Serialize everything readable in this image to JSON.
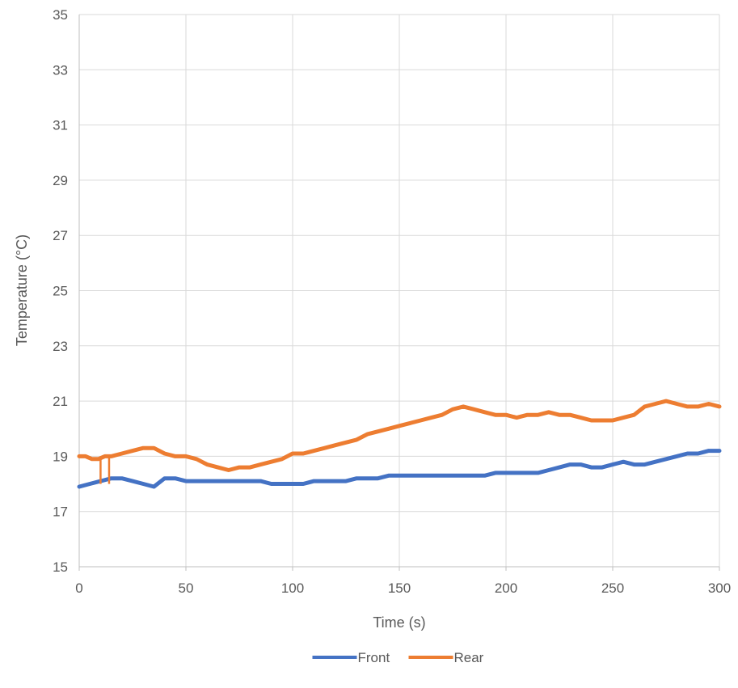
{
  "chart_data": {
    "type": "line",
    "title": "",
    "xlabel": "Time (s)",
    "ylabel": "Temperature (°C)",
    "xlim": [
      0,
      300
    ],
    "ylim": [
      15,
      35
    ],
    "xticks": [
      0,
      50,
      100,
      150,
      200,
      250,
      300
    ],
    "yticks": [
      15,
      17,
      19,
      21,
      23,
      25,
      27,
      29,
      31,
      33,
      35
    ],
    "grid": true,
    "legend_position": "bottom",
    "series": [
      {
        "name": "Front",
        "color": "#4472C4",
        "points": [
          [
            0,
            17.9
          ],
          [
            5,
            18.0
          ],
          [
            10,
            18.1
          ],
          [
            15,
            18.2
          ],
          [
            20,
            18.2
          ],
          [
            25,
            18.1
          ],
          [
            30,
            18.0
          ],
          [
            35,
            17.9
          ],
          [
            40,
            18.2
          ],
          [
            45,
            18.2
          ],
          [
            50,
            18.1
          ],
          [
            55,
            18.1
          ],
          [
            60,
            18.1
          ],
          [
            65,
            18.1
          ],
          [
            70,
            18.1
          ],
          [
            75,
            18.1
          ],
          [
            80,
            18.1
          ],
          [
            85,
            18.1
          ],
          [
            90,
            18.0
          ],
          [
            95,
            18.0
          ],
          [
            100,
            18.0
          ],
          [
            105,
            18.0
          ],
          [
            110,
            18.1
          ],
          [
            115,
            18.1
          ],
          [
            120,
            18.1
          ],
          [
            125,
            18.1
          ],
          [
            130,
            18.2
          ],
          [
            135,
            18.2
          ],
          [
            140,
            18.2
          ],
          [
            145,
            18.3
          ],
          [
            150,
            18.3
          ],
          [
            155,
            18.3
          ],
          [
            160,
            18.3
          ],
          [
            165,
            18.3
          ],
          [
            170,
            18.3
          ],
          [
            175,
            18.3
          ],
          [
            180,
            18.3
          ],
          [
            185,
            18.3
          ],
          [
            190,
            18.3
          ],
          [
            195,
            18.4
          ],
          [
            200,
            18.4
          ],
          [
            205,
            18.4
          ],
          [
            210,
            18.4
          ],
          [
            215,
            18.4
          ],
          [
            220,
            18.5
          ],
          [
            225,
            18.6
          ],
          [
            230,
            18.7
          ],
          [
            235,
            18.7
          ],
          [
            240,
            18.6
          ],
          [
            245,
            18.6
          ],
          [
            250,
            18.7
          ],
          [
            255,
            18.8
          ],
          [
            260,
            18.7
          ],
          [
            265,
            18.7
          ],
          [
            270,
            18.8
          ],
          [
            275,
            18.9
          ],
          [
            280,
            19.0
          ],
          [
            285,
            19.1
          ],
          [
            290,
            19.1
          ],
          [
            295,
            19.2
          ],
          [
            300,
            19.2
          ]
        ]
      },
      {
        "name": "Rear",
        "color": "#ED7D31",
        "points": [
          [
            0,
            19.0
          ],
          [
            3,
            19.0
          ],
          [
            6,
            18.9
          ],
          [
            9,
            18.9
          ],
          [
            12,
            19.0
          ],
          [
            15,
            19.0
          ],
          [
            20,
            19.1
          ],
          [
            25,
            19.2
          ],
          [
            30,
            19.3
          ],
          [
            35,
            19.3
          ],
          [
            40,
            19.1
          ],
          [
            45,
            19.0
          ],
          [
            50,
            19.0
          ],
          [
            55,
            18.9
          ],
          [
            60,
            18.7
          ],
          [
            65,
            18.6
          ],
          [
            70,
            18.5
          ],
          [
            75,
            18.6
          ],
          [
            80,
            18.6
          ],
          [
            85,
            18.7
          ],
          [
            90,
            18.8
          ],
          [
            95,
            18.9
          ],
          [
            100,
            19.1
          ],
          [
            105,
            19.1
          ],
          [
            110,
            19.2
          ],
          [
            115,
            19.3
          ],
          [
            120,
            19.4
          ],
          [
            125,
            19.5
          ],
          [
            130,
            19.6
          ],
          [
            135,
            19.8
          ],
          [
            140,
            19.9
          ],
          [
            145,
            20.0
          ],
          [
            150,
            20.1
          ],
          [
            155,
            20.2
          ],
          [
            160,
            20.3
          ],
          [
            165,
            20.4
          ],
          [
            170,
            20.5
          ],
          [
            175,
            20.7
          ],
          [
            180,
            20.8
          ],
          [
            185,
            20.7
          ],
          [
            190,
            20.6
          ],
          [
            195,
            20.5
          ],
          [
            200,
            20.5
          ],
          [
            205,
            20.4
          ],
          [
            210,
            20.5
          ],
          [
            215,
            20.5
          ],
          [
            220,
            20.6
          ],
          [
            225,
            20.5
          ],
          [
            230,
            20.5
          ],
          [
            235,
            20.4
          ],
          [
            240,
            20.3
          ],
          [
            245,
            20.3
          ],
          [
            250,
            20.3
          ],
          [
            255,
            20.4
          ],
          [
            260,
            20.5
          ],
          [
            265,
            20.8
          ],
          [
            270,
            20.9
          ],
          [
            275,
            21.0
          ],
          [
            280,
            20.9
          ],
          [
            285,
            20.8
          ],
          [
            290,
            20.8
          ],
          [
            295,
            20.9
          ],
          [
            300,
            20.8
          ]
        ],
        "dips": [
          [
            10,
            18.0
          ],
          [
            14,
            18.0
          ]
        ]
      }
    ]
  }
}
